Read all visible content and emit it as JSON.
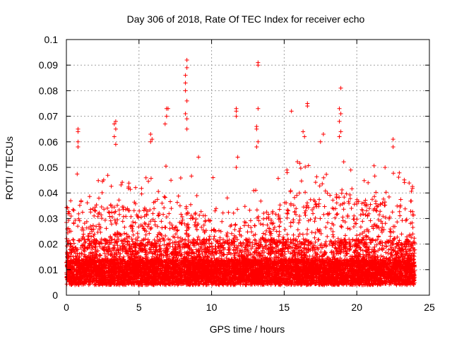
{
  "chart_data": {
    "type": "scatter",
    "title": "Day 306 of 2018, Rate Of TEC Index for receiver echo",
    "xlabel": "GPS time / hours",
    "ylabel": "ROTI / TECUs",
    "xlim": [
      0,
      25
    ],
    "ylim": [
      0,
      0.1
    ],
    "xticks": [
      0,
      5,
      10,
      15,
      20,
      25
    ],
    "yticks": [
      0,
      0.01,
      0.02,
      0.03,
      0.04,
      0.05,
      0.06,
      0.07,
      0.08,
      0.09,
      0.1
    ],
    "xtick_labels": [
      "0",
      "5",
      "10",
      "15",
      "20",
      "25"
    ],
    "ytick_labels": [
      "0",
      "0.01",
      "0.02",
      "0.03",
      "0.04",
      "0.05",
      "0.06",
      "0.07",
      "0.08",
      "0.09",
      "0.1"
    ],
    "grid": true,
    "marker": "+",
    "color": "#ff0000",
    "data_range_x": [
      0,
      24
    ],
    "notable_points": [
      {
        "x": 8.3,
        "y": 0.092
      },
      {
        "x": 8.3,
        "y": 0.089
      },
      {
        "x": 8.2,
        "y": 0.086
      },
      {
        "x": 8.2,
        "y": 0.083
      },
      {
        "x": 8.2,
        "y": 0.08
      },
      {
        "x": 8.3,
        "y": 0.076
      },
      {
        "x": 8.2,
        "y": 0.071
      },
      {
        "x": 8.3,
        "y": 0.069
      },
      {
        "x": 8.3,
        "y": 0.065
      },
      {
        "x": 13.2,
        "y": 0.091
      },
      {
        "x": 13.2,
        "y": 0.09
      },
      {
        "x": 13.2,
        "y": 0.073
      },
      {
        "x": 13.1,
        "y": 0.066
      },
      {
        "x": 13.1,
        "y": 0.065
      },
      {
        "x": 13.2,
        "y": 0.06
      },
      {
        "x": 13.1,
        "y": 0.058
      },
      {
        "x": 18.9,
        "y": 0.081
      },
      {
        "x": 18.8,
        "y": 0.073
      },
      {
        "x": 18.9,
        "y": 0.071
      },
      {
        "x": 18.8,
        "y": 0.068
      },
      {
        "x": 18.9,
        "y": 0.064
      },
      {
        "x": 18.8,
        "y": 0.062
      },
      {
        "x": 6.9,
        "y": 0.073
      },
      {
        "x": 7.0,
        "y": 0.073
      },
      {
        "x": 6.9,
        "y": 0.07
      },
      {
        "x": 6.8,
        "y": 0.067
      },
      {
        "x": 16.6,
        "y": 0.075
      },
      {
        "x": 16.6,
        "y": 0.074
      },
      {
        "x": 16.3,
        "y": 0.064
      },
      {
        "x": 16.4,
        "y": 0.062
      },
      {
        "x": 3.4,
        "y": 0.068
      },
      {
        "x": 3.3,
        "y": 0.067
      },
      {
        "x": 3.4,
        "y": 0.065
      },
      {
        "x": 3.3,
        "y": 0.062
      },
      {
        "x": 3.4,
        "y": 0.059
      },
      {
        "x": 11.7,
        "y": 0.073
      },
      {
        "x": 11.7,
        "y": 0.072
      },
      {
        "x": 11.7,
        "y": 0.07
      },
      {
        "x": 11.8,
        "y": 0.054
      },
      {
        "x": 11.7,
        "y": 0.05
      },
      {
        "x": 0.8,
        "y": 0.065
      },
      {
        "x": 0.8,
        "y": 0.064
      },
      {
        "x": 0.8,
        "y": 0.06
      },
      {
        "x": 0.8,
        "y": 0.058
      },
      {
        "x": 5.8,
        "y": 0.063
      },
      {
        "x": 5.9,
        "y": 0.061
      },
      {
        "x": 5.8,
        "y": 0.06
      },
      {
        "x": 15.5,
        "y": 0.072
      },
      {
        "x": 17.7,
        "y": 0.063
      },
      {
        "x": 17.5,
        "y": 0.06
      },
      {
        "x": 22.5,
        "y": 0.061
      },
      {
        "x": 22.5,
        "y": 0.058
      },
      {
        "x": 10.1,
        "y": 0.046
      },
      {
        "x": 9.1,
        "y": 0.054
      }
    ],
    "band_profile": [
      {
        "x": 0,
        "top": 0.048
      },
      {
        "x": 1,
        "top": 0.05
      },
      {
        "x": 2,
        "top": 0.045
      },
      {
        "x": 3,
        "top": 0.048
      },
      {
        "x": 4,
        "top": 0.046
      },
      {
        "x": 5,
        "top": 0.044
      },
      {
        "x": 6,
        "top": 0.05
      },
      {
        "x": 7,
        "top": 0.052
      },
      {
        "x": 8,
        "top": 0.048
      },
      {
        "x": 9,
        "top": 0.046
      },
      {
        "x": 10,
        "top": 0.038
      },
      {
        "x": 11,
        "top": 0.04
      },
      {
        "x": 12,
        "top": 0.038
      },
      {
        "x": 13,
        "top": 0.042
      },
      {
        "x": 14,
        "top": 0.046
      },
      {
        "x": 15,
        "top": 0.05
      },
      {
        "x": 16,
        "top": 0.054
      },
      {
        "x": 17,
        "top": 0.05
      },
      {
        "x": 18,
        "top": 0.052
      },
      {
        "x": 19,
        "top": 0.055
      },
      {
        "x": 20,
        "top": 0.05
      },
      {
        "x": 21,
        "top": 0.052
      },
      {
        "x": 22,
        "top": 0.05
      },
      {
        "x": 23,
        "top": 0.048
      },
      {
        "x": 24,
        "top": 0.044
      }
    ]
  }
}
